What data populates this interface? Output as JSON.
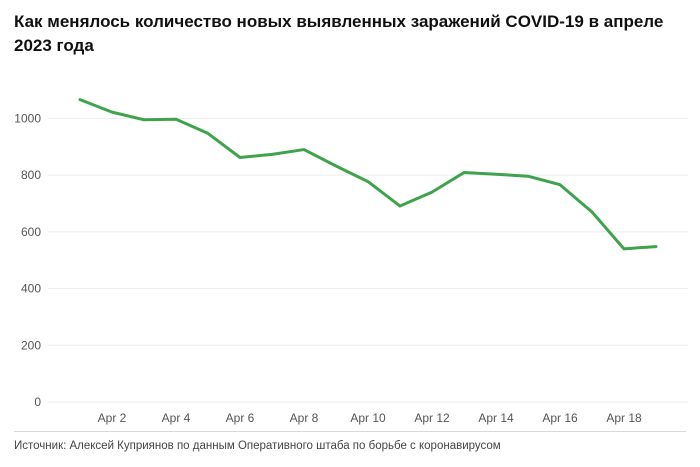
{
  "title": "Как менялось количество новых выявленных заражений COVID-19 в апреле 2023 года",
  "source": "Источник: Алексей Куприянов по данным Оперативного штаба по борьбе с коронавирусом",
  "chart_data": {
    "type": "line",
    "x": [
      "Apr 1",
      "Apr 2",
      "Apr 3",
      "Apr 4",
      "Apr 5",
      "Apr 6",
      "Apr 7",
      "Apr 8",
      "Apr 9",
      "Apr 10",
      "Apr 11",
      "Apr 12",
      "Apr 13",
      "Apr 14",
      "Apr 15",
      "Apr 16",
      "Apr 17",
      "Apr 18",
      "Apr 19"
    ],
    "x_ticks": [
      "Apr 2",
      "Apr 4",
      "Apr 6",
      "Apr 8",
      "Apr 10",
      "Apr 12",
      "Apr 14",
      "Apr 16",
      "Apr 18"
    ],
    "series": [
      {
        "color": "#3fa34d",
        "values": [
          1066,
          1022,
          995,
          997,
          947,
          862,
          873,
          890,
          832,
          777,
          691,
          740,
          809,
          803,
          796,
          766,
          670,
          540,
          548
        ]
      }
    ],
    "ylim": [
      0,
      1100
    ],
    "y_ticks": [
      0,
      200,
      400,
      600,
      800,
      1000
    ],
    "grid": true,
    "xlabel": "",
    "ylabel": ""
  }
}
